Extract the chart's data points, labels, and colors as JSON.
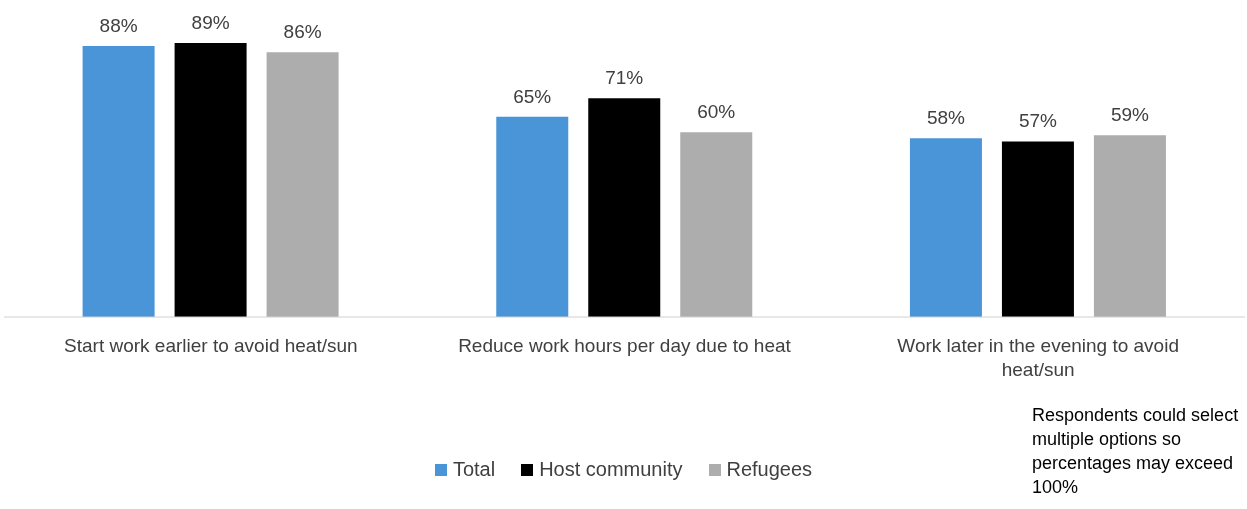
{
  "chart_data": {
    "type": "bar",
    "categories": [
      "Start work earlier to avoid heat/sun",
      "Reduce work hours per day due to heat",
      "Work later in the evening to avoid heat/sun"
    ],
    "series": [
      {
        "name": "Total",
        "color": "#4a94d8",
        "values": [
          88,
          65,
          58
        ],
        "value_labels": [
          "88%",
          "65%",
          "58%"
        ]
      },
      {
        "name": "Host community",
        "color": "#000000",
        "values": [
          89,
          71,
          57
        ],
        "value_labels": [
          "89%",
          "71%",
          "57%"
        ]
      },
      {
        "name": "Refugees",
        "color": "#adadad",
        "values": [
          86,
          60,
          59
        ],
        "value_labels": [
          "86%",
          "60%",
          "59%"
        ]
      }
    ],
    "legend": "bottom",
    "grid": false,
    "annotations": [
      "Respondents could select multiple options so percentages may exceed 100%"
    ]
  }
}
